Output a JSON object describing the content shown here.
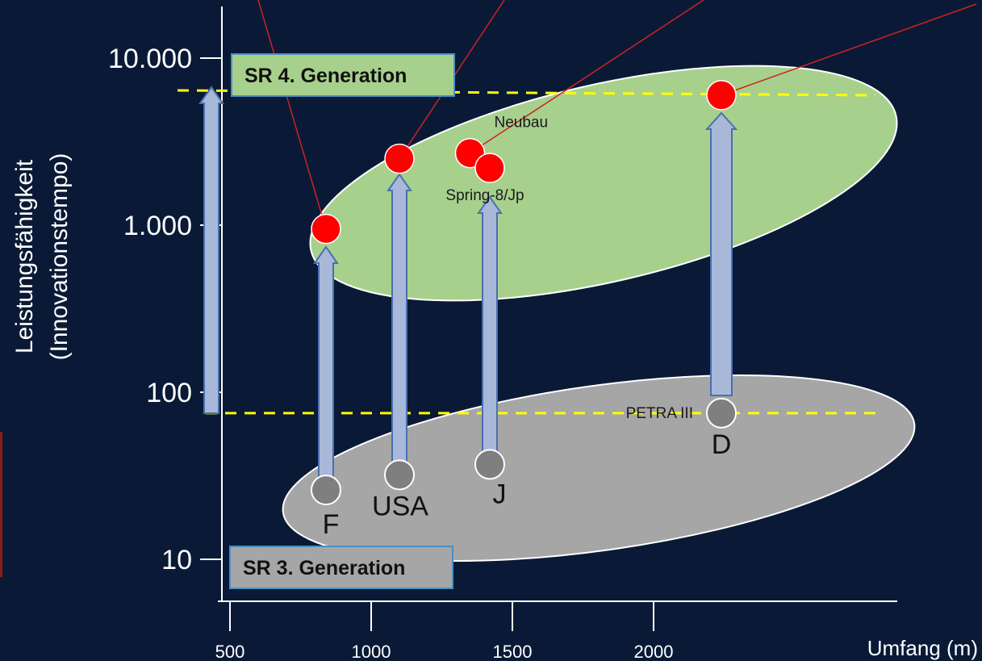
{
  "chart_data": {
    "type": "scatter",
    "y_scale": "log",
    "ylabel_line1": "Leistungsfähigkeit",
    "ylabel_line2": "(Innovationstempo)",
    "xlabel": "Umfang (m)",
    "y_ticks": [
      {
        "value": 10,
        "label": "10"
      },
      {
        "value": 100,
        "label": "100"
      },
      {
        "value": 1000,
        "label": "1.000"
      },
      {
        "value": 10000,
        "label": "10.000"
      }
    ],
    "x_ticks": [
      {
        "value": 500,
        "label": "500"
      },
      {
        "value": 1000,
        "label": "1000"
      },
      {
        "value": 1500,
        "label": "1500"
      },
      {
        "value": 2000,
        "label": "2000"
      }
    ],
    "xlim": [
      0,
      2400
    ],
    "ylim": [
      5,
      30000
    ],
    "regions": [
      {
        "label": "SR 4. Generation",
        "color": "#a8d08d"
      },
      {
        "label": "SR 3. Generation",
        "color": "#a6a6a6"
      }
    ],
    "reference_lines": [
      {
        "y": 6500,
        "color": "#ffff00"
      },
      {
        "y": 75,
        "color": "#ffff00"
      }
    ],
    "points_3rd_gen": [
      {
        "label": "F",
        "x": 840,
        "y": 26
      },
      {
        "label": "USA",
        "x": 1100,
        "y": 32
      },
      {
        "label": "J",
        "x": 1420,
        "y": 37
      },
      {
        "label": "D",
        "x": 2240,
        "y": 75,
        "annotation": "PETRA III"
      }
    ],
    "points_4th_gen": [
      {
        "label": "",
        "x": 840,
        "y": 950
      },
      {
        "label": "",
        "x": 1100,
        "y": 2500
      },
      {
        "label": "Neubau",
        "x": 1350,
        "y": 2700
      },
      {
        "label": "Spring-8/Jp",
        "x": 1420,
        "y": 2200
      },
      {
        "label": "",
        "x": 2240,
        "y": 6000
      }
    ],
    "colors": {
      "background": "#0a1a36",
      "point_4th": "#ff0000",
      "point_3rd": "#7f7f7f",
      "arrow": "#a8b8d8",
      "leader_line": "#cc2222"
    }
  }
}
